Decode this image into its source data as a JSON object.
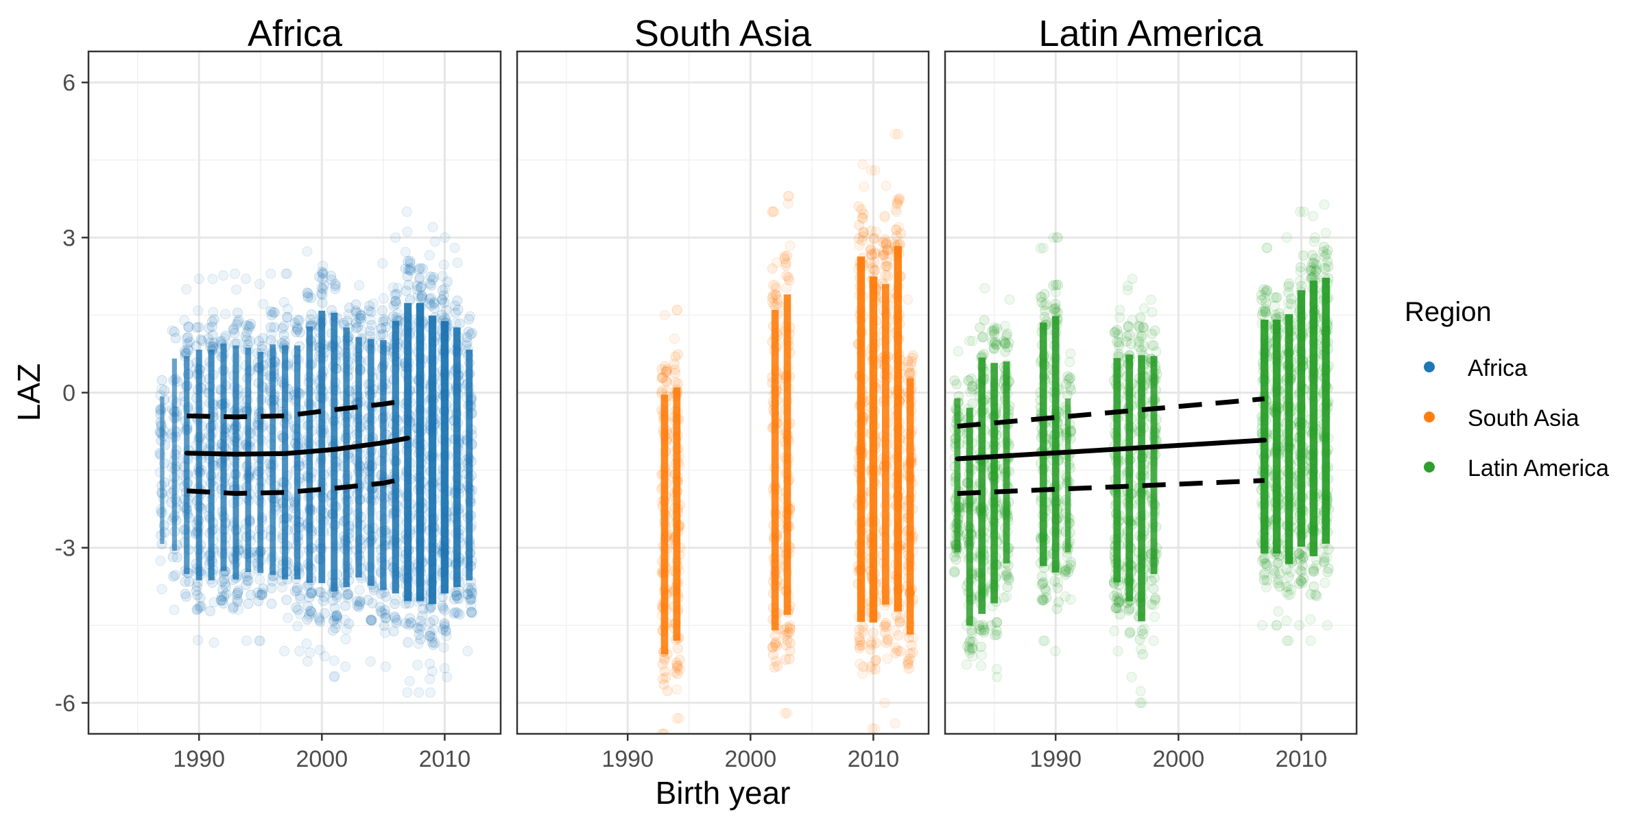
{
  "chart_data": {
    "type": "scatter",
    "xlabel": "Birth year",
    "ylabel": "LAZ",
    "xlim": [
      1981,
      2014.5
    ],
    "ylim": [
      -6.6,
      6.6
    ],
    "x_ticks": [
      1990,
      2000,
      2010
    ],
    "x_tick_labels": [
      "1990",
      "2000",
      "2010"
    ],
    "y_ticks": [
      -6,
      -3,
      0,
      3,
      6
    ],
    "y_tick_labels": [
      "-6",
      "-3",
      "0",
      "3",
      "6"
    ],
    "grid": true,
    "legend": {
      "title": "Region",
      "placement": "right",
      "entries": [
        {
          "label": "Africa",
          "color": "#1f77b4"
        },
        {
          "label": "South Asia",
          "color": "#ff7f0e"
        },
        {
          "label": "Latin America",
          "color": "#2ca02c"
        }
      ]
    },
    "panels": [
      {
        "title": "Africa",
        "color": "#1f77b4",
        "point_columns": [
          {
            "x": 1987,
            "min": -3.8,
            "max": 0.8,
            "density": 0.35
          },
          {
            "x": 1988,
            "min": -4.2,
            "max": 1.8,
            "density": 0.45
          },
          {
            "x": 1989,
            "min": -4.8,
            "max": 2.0,
            "density": 0.6
          },
          {
            "x": 1990,
            "min": -5.0,
            "max": 2.2,
            "density": 0.7
          },
          {
            "x": 1991,
            "min": -5.0,
            "max": 2.2,
            "density": 0.7
          },
          {
            "x": 1992,
            "min": -4.8,
            "max": 2.3,
            "density": 0.7
          },
          {
            "x": 1993,
            "min": -5.0,
            "max": 2.3,
            "density": 0.7
          },
          {
            "x": 1994,
            "min": -4.8,
            "max": 2.2,
            "density": 0.65
          },
          {
            "x": 1995,
            "min": -4.8,
            "max": 2.1,
            "density": 0.65
          },
          {
            "x": 1996,
            "min": -4.9,
            "max": 2.3,
            "density": 0.65
          },
          {
            "x": 1997,
            "min": -5.0,
            "max": 2.3,
            "density": 0.7
          },
          {
            "x": 1998,
            "min": -5.0,
            "max": 2.3,
            "density": 0.7
          },
          {
            "x": 1999,
            "min": -5.2,
            "max": 2.8,
            "density": 0.75
          },
          {
            "x": 2000,
            "min": -5.3,
            "max": 3.2,
            "density": 0.8
          },
          {
            "x": 2001,
            "min": -5.5,
            "max": 3.2,
            "density": 0.8
          },
          {
            "x": 2002,
            "min": -5.3,
            "max": 2.8,
            "density": 0.75
          },
          {
            "x": 2003,
            "min": -5.0,
            "max": 2.5,
            "density": 0.75
          },
          {
            "x": 2004,
            "min": -5.2,
            "max": 2.5,
            "density": 0.75
          },
          {
            "x": 2005,
            "min": -5.3,
            "max": 2.5,
            "density": 0.75
          },
          {
            "x": 2006,
            "min": -5.5,
            "max": 3.0,
            "density": 0.85
          },
          {
            "x": 2007,
            "min": -5.8,
            "max": 3.5,
            "density": 0.95
          },
          {
            "x": 2008,
            "min": -5.8,
            "max": 3.5,
            "density": 1.0
          },
          {
            "x": 2009,
            "min": -5.8,
            "max": 3.2,
            "density": 1.0
          },
          {
            "x": 2010,
            "min": -5.5,
            "max": 3.0,
            "density": 1.0
          },
          {
            "x": 2011,
            "min": -5.3,
            "max": 2.8,
            "density": 0.9
          },
          {
            "x": 2012,
            "min": -5.0,
            "max": 2.2,
            "density": 0.8
          }
        ],
        "fit": {
          "x": [
            1989,
            1993,
            1997,
            2001,
            2005,
            2007
          ],
          "mean": [
            -1.17,
            -1.19,
            -1.18,
            -1.1,
            -0.97,
            -0.88
          ],
          "upper": [
            -0.45,
            -0.47,
            -0.45,
            -0.33,
            -0.22,
            -0.15
          ],
          "lower": [
            -1.9,
            -1.95,
            -1.93,
            -1.85,
            -1.75,
            -1.65
          ]
        }
      },
      {
        "title": "South Asia",
        "color": "#ff7f0e",
        "point_columns": [
          {
            "x": 1993,
            "min": -6.6,
            "max": 1.5,
            "density": 0.9
          },
          {
            "x": 1994,
            "min": -6.3,
            "max": 1.6,
            "density": 0.9
          },
          {
            "x": 2002,
            "min": -6.5,
            "max": 3.5,
            "density": 0.9
          },
          {
            "x": 2003,
            "min": -6.2,
            "max": 3.8,
            "density": 0.9
          },
          {
            "x": 2009,
            "min": -6.6,
            "max": 4.8,
            "density": 1.0
          },
          {
            "x": 2010,
            "min": -6.5,
            "max": 4.3,
            "density": 1.0
          },
          {
            "x": 2011,
            "min": -6.0,
            "max": 4.0,
            "density": 0.9
          },
          {
            "x": 2012,
            "min": -6.4,
            "max": 5.0,
            "density": 1.0
          },
          {
            "x": 2013,
            "min": -6.2,
            "max": 1.8,
            "density": 0.9
          }
        ],
        "fit": null
      },
      {
        "title": "Latin America",
        "color": "#2ca02c",
        "point_columns": [
          {
            "x": 1982,
            "min": -4.0,
            "max": 0.8,
            "density": 0.7
          },
          {
            "x": 1983,
            "min": -5.8,
            "max": 1.0,
            "density": 0.8
          },
          {
            "x": 1984,
            "min": -5.8,
            "max": 2.2,
            "density": 0.9
          },
          {
            "x": 1985,
            "min": -5.5,
            "max": 2.0,
            "density": 0.9
          },
          {
            "x": 1986,
            "min": -4.5,
            "max": 1.8,
            "density": 0.8
          },
          {
            "x": 1989,
            "min": -4.8,
            "max": 2.8,
            "density": 0.9
          },
          {
            "x": 1990,
            "min": -5.0,
            "max": 3.0,
            "density": 0.9
          },
          {
            "x": 1991,
            "min": -4.0,
            "max": 0.8,
            "density": 0.6
          },
          {
            "x": 1995,
            "min": -5.0,
            "max": 2.0,
            "density": 0.9
          },
          {
            "x": 1996,
            "min": -5.5,
            "max": 2.2,
            "density": 0.9
          },
          {
            "x": 1997,
            "min": -6.0,
            "max": 2.3,
            "density": 0.9
          },
          {
            "x": 1998,
            "min": -4.8,
            "max": 2.0,
            "density": 0.8
          },
          {
            "x": 2007,
            "min": -4.5,
            "max": 2.8,
            "density": 1.0
          },
          {
            "x": 2008,
            "min": -4.5,
            "max": 2.8,
            "density": 1.0
          },
          {
            "x": 2009,
            "min": -4.8,
            "max": 3.0,
            "density": 1.0
          },
          {
            "x": 2010,
            "min": -4.5,
            "max": 3.5,
            "density": 1.0
          },
          {
            "x": 2011,
            "min": -4.8,
            "max": 3.8,
            "density": 1.0
          },
          {
            "x": 2012,
            "min": -4.5,
            "max": 3.8,
            "density": 1.0
          }
        ],
        "fit": {
          "x": [
            1982,
            2007
          ],
          "mean": [
            -1.28,
            -0.92
          ],
          "upper": [
            -0.65,
            -0.12
          ],
          "lower": [
            -1.95,
            -1.7
          ]
        }
      }
    ]
  }
}
